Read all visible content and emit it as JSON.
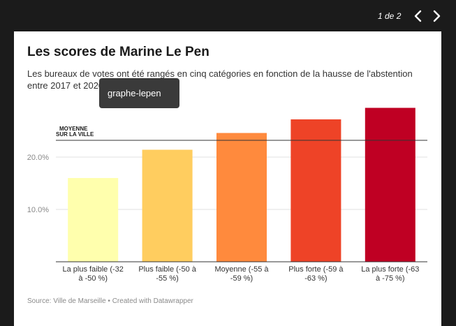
{
  "viewer": {
    "pager": "1 de 2",
    "prev_icon": "chevron-left-icon",
    "next_icon": "chevron-right-icon"
  },
  "card": {
    "title": "Les scores de Marine Le Pen",
    "subtitle": "Les bureaux de votes ont été rangés en cinq catégories en fonction de la hausse de l'abstention entre 2017 et 2020.",
    "tooltip": "graphe-lepen",
    "source": "Source: Ville de Marseille • Created with Datawrapper"
  },
  "chart_data": {
    "type": "bar",
    "categories": [
      [
        "La plus faible (-32",
        "à -50 %)"
      ],
      [
        "Plus faible (-50 à",
        "-55 %)"
      ],
      [
        "Moyenne (-55 à",
        "-59 %)"
      ],
      [
        "Plus forte (-59 à",
        "-63 %)"
      ],
      [
        "La plus forte (-63",
        "à -75 %)"
      ]
    ],
    "values": [
      16.0,
      21.4,
      24.6,
      27.2,
      29.4
    ],
    "colors": [
      "#ffffad",
      "#ffcd5f",
      "#ff8a3d",
      "#ee4327",
      "#bf0023"
    ],
    "ytick_values": [
      10,
      20
    ],
    "ytick_labels": [
      "10.0%",
      "20.0%"
    ],
    "ylim": [
      0,
      30
    ],
    "grid": true,
    "reference_line": {
      "value": 23.2,
      "label_lines": [
        "MOYENNE",
        "SUR LA VILLE"
      ]
    }
  }
}
